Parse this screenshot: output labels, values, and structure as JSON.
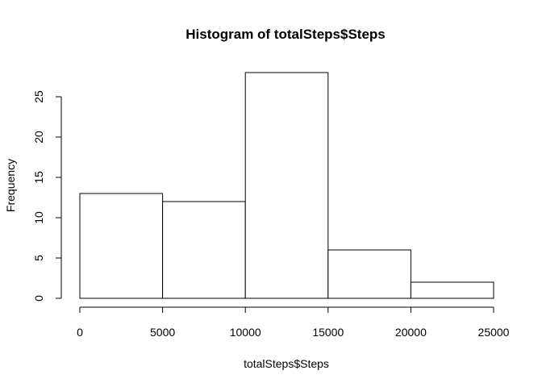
{
  "chart_data": {
    "type": "bar",
    "subtype": "histogram",
    "title": "Histogram of totalSteps$Steps",
    "xlabel": "totalSteps$Steps",
    "ylabel": "Frequency",
    "bins": [
      {
        "from": 0,
        "to": 5000,
        "count": 13
      },
      {
        "from": 5000,
        "to": 10000,
        "count": 12
      },
      {
        "from": 10000,
        "to": 15000,
        "count": 28
      },
      {
        "from": 15000,
        "to": 20000,
        "count": 6
      },
      {
        "from": 20000,
        "to": 25000,
        "count": 2
      }
    ],
    "xlim": [
      0,
      25000
    ],
    "ylim": [
      0,
      28
    ],
    "xticks": [
      0,
      5000,
      10000,
      15000,
      20000,
      25000
    ],
    "yticks": [
      0,
      5,
      10,
      15,
      20,
      25
    ],
    "grid": false,
    "legend": "none",
    "colors": {
      "bar_fill": "#ffffff",
      "bar_stroke": "#000000"
    }
  }
}
